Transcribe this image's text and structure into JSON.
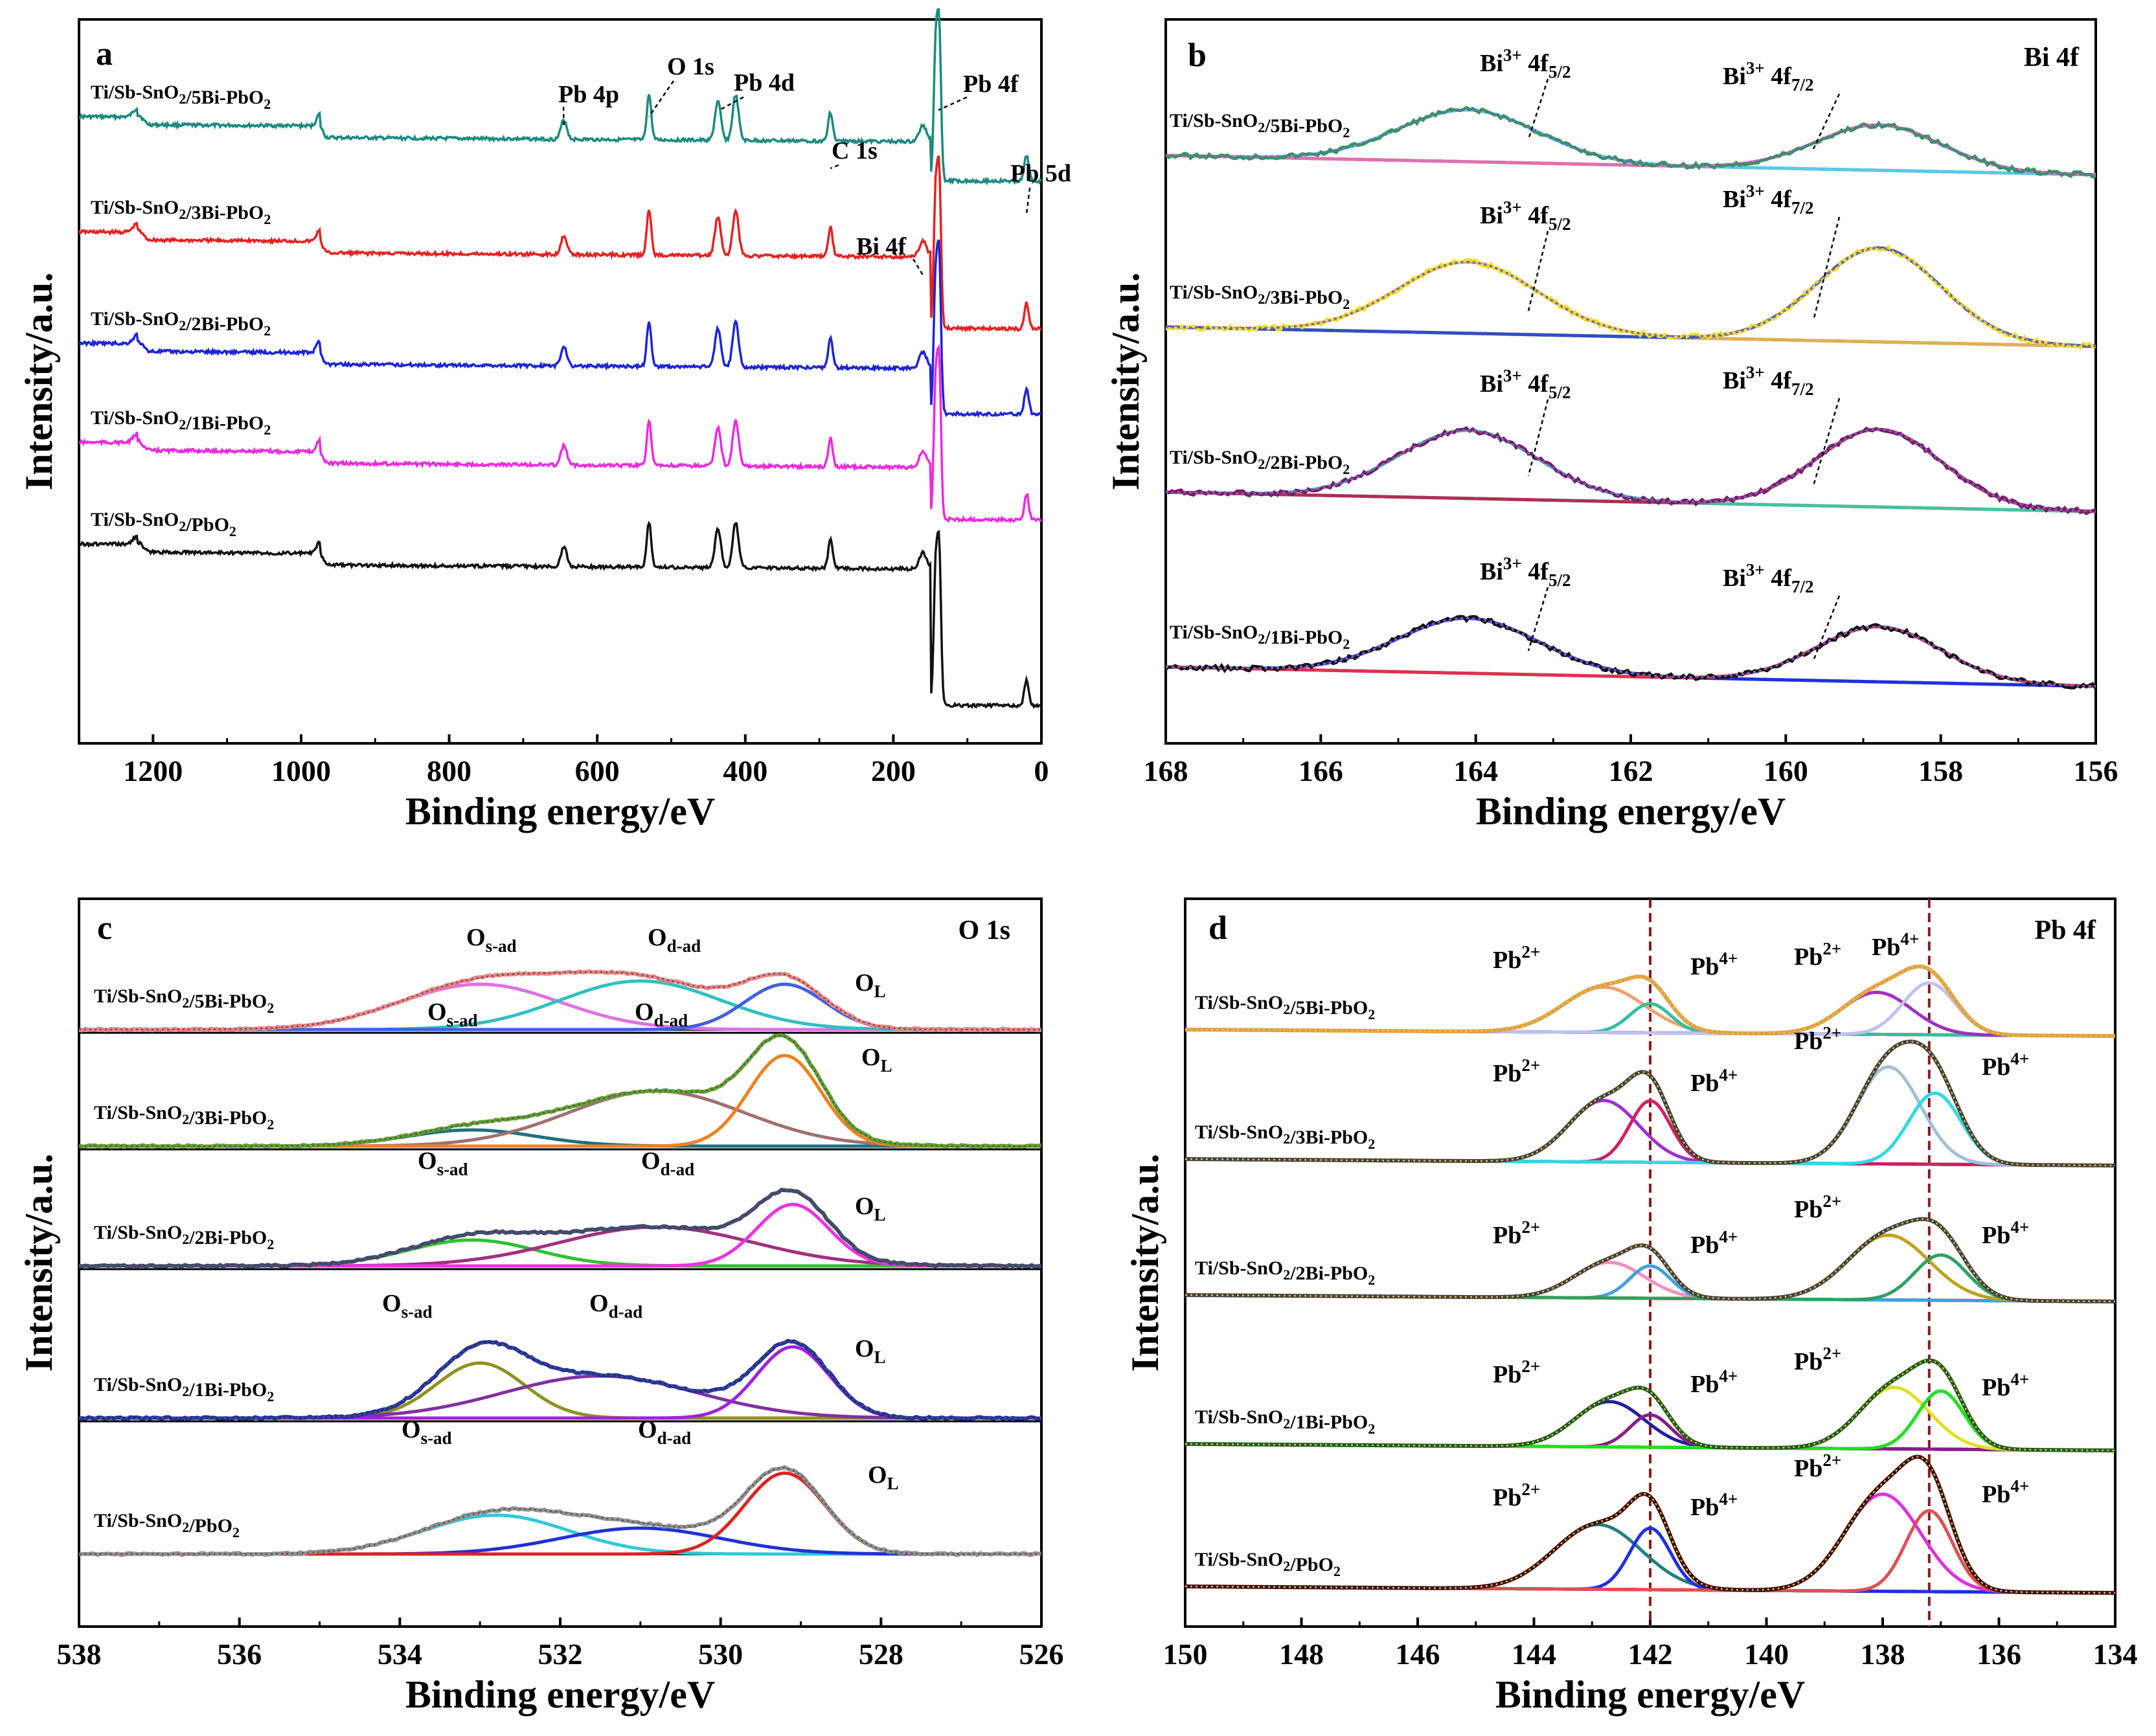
{
  "chart_data": [
    {
      "panel": "a",
      "type": "line",
      "title": "",
      "xlabel": "Binding energy/eV",
      "ylabel": "Intensity/a.u.",
      "xlim": [
        1300,
        0
      ],
      "x_ticks": [
        1200,
        1000,
        800,
        600,
        400,
        200,
        0
      ],
      "peaks": [
        {
          "label": "Pb 4p",
          "x": 645
        },
        {
          "label": "O 1s",
          "x": 530
        },
        {
          "label": "Pb 4d",
          "x": 435
        },
        {
          "label": "C 1s",
          "x": 285
        },
        {
          "label": "Bi 4f",
          "x": 160
        },
        {
          "label": "Pb 4f",
          "x": 139
        },
        {
          "label": "Pb 5d",
          "x": 20
        }
      ],
      "series": [
        {
          "name": "Ti/Sb-SnO2/5Bi-PbO2",
          "color": "#1a8a80"
        },
        {
          "name": "Ti/Sb-SnO2/3Bi-PbO2",
          "color": "#e82020"
        },
        {
          "name": "Ti/Sb-SnO2/2Bi-PbO2",
          "color": "#1c24d8"
        },
        {
          "name": "Ti/Sb-SnO2/1Bi-PbO2",
          "color": "#ee28e0"
        },
        {
          "name": "Ti/Sb-SnO2/PbO2",
          "color": "#111111"
        }
      ]
    },
    {
      "panel": "b",
      "type": "line",
      "title": "Bi 4f",
      "xlabel": "Binding energy/eV",
      "ylabel": "Intensity/a.u.",
      "xlim": [
        168,
        156
      ],
      "x_ticks": [
        168,
        166,
        164,
        162,
        160,
        158,
        156
      ],
      "components": [
        {
          "label": "Bi3+ 4f5/2",
          "center": 164.1
        },
        {
          "label": "Bi3+ 4f7/2",
          "center": 158.8
        }
      ],
      "series": [
        {
          "name": "Ti/Sb-SnO2/5Bi-PbO2",
          "color": "#2f9a56"
        },
        {
          "name": "Ti/Sb-SnO2/3Bi-PbO2",
          "color": "#f0e020"
        },
        {
          "name": "Ti/Sb-SnO2/2Bi-PbO2",
          "color": "#7a1a6a"
        },
        {
          "name": "Ti/Sb-SnO2/1Bi-PbO2",
          "color": "#111111"
        }
      ]
    },
    {
      "panel": "c",
      "type": "line",
      "title": "O 1s",
      "xlabel": "Binding energy/eV",
      "ylabel": "Intensity/a.u.",
      "xlim": [
        538,
        526
      ],
      "x_ticks": [
        538,
        536,
        534,
        532,
        530,
        528,
        526
      ],
      "components": [
        {
          "label": "Os-ad",
          "center": 533.0
        },
        {
          "label": "Od-ad",
          "center": 531.0
        },
        {
          "label": "OL",
          "center": 529.2
        }
      ],
      "series": [
        {
          "name": "Ti/Sb-SnO2/5Bi-PbO2"
        },
        {
          "name": "Ti/Sb-SnO2/3Bi-PbO2"
        },
        {
          "name": "Ti/Sb-SnO2/2Bi-PbO2"
        },
        {
          "name": "Ti/Sb-SnO2/1Bi-PbO2"
        },
        {
          "name": "Ti/Sb-SnO2/PbO2"
        }
      ]
    },
    {
      "panel": "d",
      "type": "line",
      "title": "Pb 4f",
      "xlabel": "Binding energy/eV",
      "ylabel": "Intensity/a.u.",
      "xlim": [
        150,
        134
      ],
      "x_ticks": [
        150,
        148,
        146,
        144,
        142,
        140,
        138,
        136,
        134
      ],
      "reference_lines": [
        142.0,
        137.2
      ],
      "components": [
        {
          "label": "Pb2+",
          "center": 142.8
        },
        {
          "label": "Pb4+",
          "center": 142.0
        },
        {
          "label": "Pb2+",
          "center": 138.0
        },
        {
          "label": "Pb4+",
          "center": 137.2
        }
      ],
      "series": [
        {
          "name": "Ti/Sb-SnO2/5Bi-PbO2"
        },
        {
          "name": "Ti/Sb-SnO2/3Bi-PbO2"
        },
        {
          "name": "Ti/Sb-SnO2/2Bi-PbO2"
        },
        {
          "name": "Ti/Sb-SnO2/1Bi-PbO2"
        },
        {
          "name": "Ti/Sb-SnO2/PbO2"
        }
      ]
    }
  ],
  "labels": {
    "panel_a": "a",
    "panel_b": "b",
    "panel_c": "c",
    "panel_d": "d",
    "tag_b": "Bi 4f",
    "tag_c": "O 1s",
    "tag_d": "Pb 4f",
    "ylabel": "Intensity/a.u.",
    "xlabel": "Binding energy/eV",
    "pb4p": "Pb 4p",
    "o1s": "O 1s",
    "pb4d": "Pb 4d",
    "c1s": "C 1s",
    "bi4f": "Bi 4f",
    "pb4f": "Pb 4f",
    "pb5d": "Pb 5d"
  }
}
